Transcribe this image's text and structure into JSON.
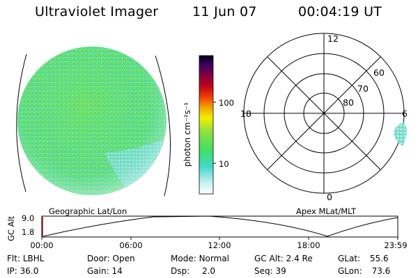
{
  "header": {
    "instrument": "Ultraviolet Imager",
    "date": "11 Jun 07",
    "time": "00:04:19 UT"
  },
  "colorbar": {
    "unit_label": "photon cm⁻²s⁻¹",
    "ticks": [
      "100",
      "10"
    ]
  },
  "polar_plot": {
    "mlt_labels": [
      "12",
      "18",
      "6",
      "0"
    ],
    "lat_labels": [
      "60",
      "70",
      "80"
    ]
  },
  "map_labels": {
    "geographic": "Geographic Lat/Lon",
    "apex": "Apex MLat/MLT"
  },
  "altitude_plot": {
    "ylabel": "GC Alt",
    "y_ticks": [
      "9.0",
      "1.8"
    ],
    "x_ticks": [
      "00:00",
      "06:00",
      "12:00",
      "18:00",
      "23:59"
    ]
  },
  "info": {
    "row1": [
      {
        "label": "Flt:",
        "value": "LBHL"
      },
      {
        "label": "Door:",
        "value": "Open"
      },
      {
        "label": "Mode:",
        "value": "Normal"
      },
      {
        "label": "GC Alt:",
        "value": "2.4 Re"
      },
      {
        "label": "GLat:",
        "value": "55.6"
      }
    ],
    "row2": [
      {
        "label": "IP:",
        "value": "36.0"
      },
      {
        "label": "Gain:",
        "value": "14"
      },
      {
        "label": "Dsp:",
        "value": "2.0"
      },
      {
        "label": "Seq:",
        "value": "39"
      },
      {
        "label": "GLon:",
        "value": "73.6"
      }
    ]
  },
  "colors": {
    "image_green": "#66e04a",
    "image_cyan": "#40d8c8",
    "image_pale": "#c8f0f0",
    "axis": "#000000",
    "cursor": "#8b1a1a"
  }
}
